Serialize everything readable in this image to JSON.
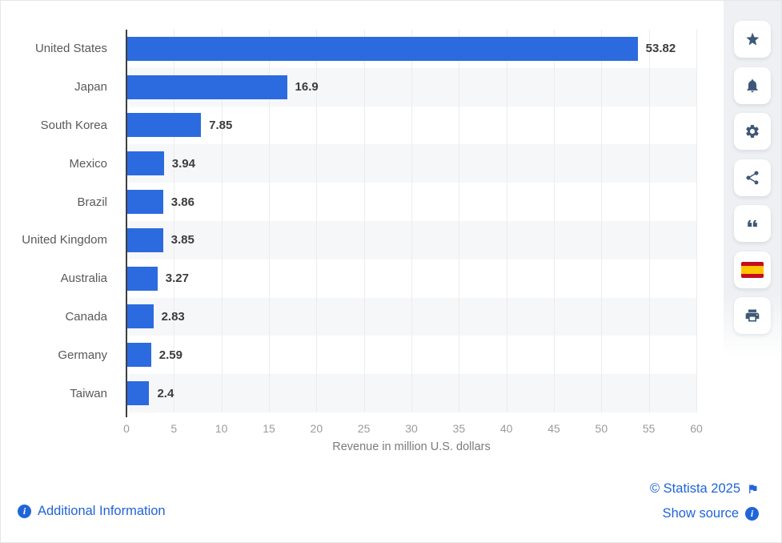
{
  "chart_data": {
    "type": "bar",
    "orientation": "horizontal",
    "categories": [
      "United States",
      "Japan",
      "South Korea",
      "Mexico",
      "Brazil",
      "United Kingdom",
      "Australia",
      "Canada",
      "Germany",
      "Taiwan"
    ],
    "values": [
      53.82,
      16.9,
      7.85,
      3.94,
      3.86,
      3.85,
      3.27,
      2.83,
      2.59,
      2.4
    ],
    "value_labels": [
      "53.82",
      "16.9",
      "7.85",
      "3.94",
      "3.86",
      "3.85",
      "3.27",
      "2.83",
      "2.59",
      "2.4"
    ],
    "title": "",
    "xlabel": "Revenue in million U.S. dollars",
    "ylabel": "",
    "xlim": [
      0,
      60
    ],
    "xticks": [
      "0",
      "5",
      "10",
      "15",
      "20",
      "25",
      "30",
      "35",
      "40",
      "45",
      "50",
      "55",
      "60"
    ],
    "grid": true,
    "legend": false,
    "bar_color": "#2c6bdf",
    "stripe_color": "#f6f7f8"
  },
  "toolbar": {
    "buttons": [
      {
        "icon": "star-icon"
      },
      {
        "icon": "bell-icon"
      },
      {
        "icon": "gear-icon"
      },
      {
        "icon": "share-icon"
      },
      {
        "icon": "quote-icon"
      },
      {
        "icon": "spain-flag-icon"
      },
      {
        "icon": "printer-icon"
      }
    ]
  },
  "footer": {
    "additional_information": "Additional Information",
    "copyright": "© Statista 2025",
    "show_source": "Show source"
  },
  "colors": {
    "bar": "#2c6bdf",
    "link": "#2064d9",
    "icon": "#3e5878",
    "axis": "#3f3f3f"
  }
}
